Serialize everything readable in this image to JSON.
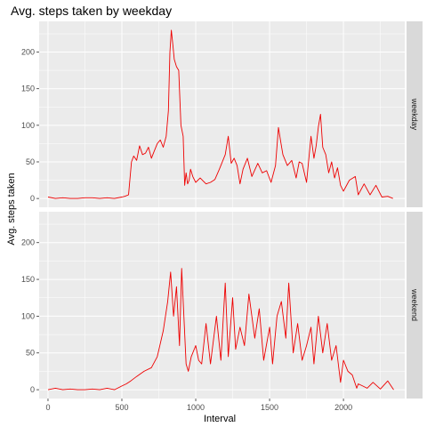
{
  "chart_data": {
    "type": "line",
    "title": "Avg. steps taken by weekday",
    "xlabel": "Interval",
    "ylabel": "Avg. steps taken",
    "xlim": [
      -60,
      2415
    ],
    "ylim": [
      -12,
      242
    ],
    "xticks": [
      0,
      500,
      1000,
      1500,
      2000
    ],
    "yticks": [
      0,
      50,
      100,
      150,
      200
    ],
    "grid": true,
    "line_color": "#ee0000",
    "panel_bg": "#ebebeb",
    "strip_bg": "#d9d9d9",
    "grid_color": "#ffffff",
    "facets": [
      {
        "strip": "weekday",
        "x": [
          0,
          50,
          100,
          150,
          200,
          250,
          300,
          350,
          400,
          450,
          500,
          520,
          545,
          565,
          580,
          600,
          620,
          640,
          660,
          680,
          700,
          720,
          740,
          760,
          780,
          800,
          815,
          825,
          835,
          845,
          855,
          870,
          885,
          900,
          915,
          925,
          935,
          945,
          955,
          965,
          980,
          1000,
          1030,
          1070,
          1100,
          1130,
          1160,
          1200,
          1220,
          1240,
          1260,
          1280,
          1300,
          1320,
          1350,
          1380,
          1420,
          1450,
          1480,
          1510,
          1540,
          1560,
          1575,
          1590,
          1620,
          1650,
          1680,
          1700,
          1720,
          1750,
          1780,
          1800,
          1815,
          1830,
          1845,
          1860,
          1880,
          1900,
          1920,
          1940,
          1960,
          1980,
          2000,
          2040,
          2080,
          2100,
          2140,
          2180,
          2220,
          2260,
          2300,
          2335
        ],
        "y": [
          2,
          0,
          1,
          0,
          0,
          1,
          1,
          0,
          1,
          0,
          2,
          3,
          5,
          50,
          58,
          52,
          72,
          60,
          62,
          70,
          55,
          65,
          75,
          80,
          70,
          85,
          120,
          200,
          230,
          210,
          190,
          180,
          175,
          100,
          85,
          18,
          35,
          20,
          25,
          40,
          30,
          22,
          28,
          20,
          22,
          26,
          40,
          60,
          85,
          48,
          55,
          45,
          20,
          40,
          55,
          30,
          48,
          35,
          38,
          22,
          45,
          97,
          78,
          60,
          45,
          52,
          28,
          50,
          48,
          22,
          85,
          55,
          72,
          98,
          115,
          70,
          60,
          35,
          50,
          28,
          42,
          18,
          10,
          25,
          30,
          5,
          20,
          5,
          18,
          2,
          3,
          0
        ]
      },
      {
        "strip": "weekend",
        "x": [
          0,
          50,
          100,
          150,
          200,
          250,
          300,
          350,
          400,
          450,
          500,
          530,
          560,
          600,
          650,
          700,
          740,
          780,
          810,
          830,
          850,
          870,
          890,
          905,
          920,
          935,
          950,
          970,
          1000,
          1020,
          1040,
          1070,
          1100,
          1140,
          1170,
          1200,
          1220,
          1250,
          1270,
          1300,
          1330,
          1360,
          1400,
          1430,
          1460,
          1500,
          1520,
          1550,
          1580,
          1610,
          1630,
          1660,
          1690,
          1720,
          1750,
          1780,
          1800,
          1830,
          1860,
          1890,
          1920,
          1950,
          1980,
          2000,
          2030,
          2060,
          2090,
          2100,
          2130,
          2160,
          2200,
          2250,
          2300,
          2340
        ],
        "y": [
          0,
          2,
          0,
          1,
          0,
          0,
          1,
          0,
          2,
          0,
          5,
          8,
          12,
          18,
          25,
          30,
          45,
          80,
          120,
          160,
          100,
          140,
          60,
          165,
          100,
          35,
          25,
          45,
          60,
          40,
          35,
          90,
          35,
          100,
          40,
          145,
          45,
          125,
          55,
          85,
          60,
          130,
          70,
          110,
          40,
          85,
          35,
          100,
          120,
          70,
          145,
          50,
          90,
          40,
          60,
          85,
          35,
          100,
          50,
          90,
          40,
          60,
          10,
          40,
          25,
          20,
          2,
          8,
          5,
          2,
          10,
          1,
          12,
          0
        ]
      }
    ]
  }
}
